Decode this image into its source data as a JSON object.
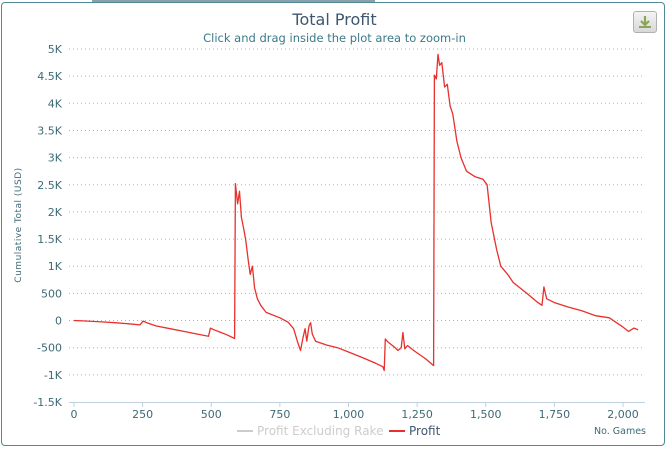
{
  "header": {
    "title": "Total Profit",
    "subtitle": "Click and drag inside the plot area to zoom-in",
    "download_icon": "download-icon"
  },
  "chart_data": {
    "type": "line",
    "title": "Total Profit",
    "subtitle": "Click and drag inside the plot area to zoom-in",
    "xlabel": "No. Games",
    "ylabel": "Cumulative Total (USD)",
    "xlim": [
      -20,
      2080
    ],
    "ylim": [
      -1500,
      5000
    ],
    "xticks": [
      0,
      250,
      500,
      750,
      1000,
      1250,
      1500,
      1750,
      2000
    ],
    "xtick_labels": [
      "0",
      "250",
      "500",
      "750",
      "1,000",
      "1,250",
      "1,500",
      "1,750",
      "2,000"
    ],
    "yticks": [
      -1500,
      -1000,
      -500,
      0,
      500,
      1000,
      1500,
      2000,
      2500,
      3000,
      3500,
      4000,
      4500,
      5000
    ],
    "ytick_labels": [
      "-1.5K",
      "-1K",
      "-500",
      "0",
      "500",
      "1K",
      "1.5K",
      "2K",
      "2.5K",
      "3K",
      "3.5K",
      "4K",
      "4.5K",
      "5K"
    ],
    "grid": true,
    "legend_position": "bottom-center",
    "series": [
      {
        "name": "Profit Excluding Rake",
        "color": "#cccccc",
        "visible": false,
        "points": []
      },
      {
        "name": "Profit",
        "color": "#e8302c",
        "visible": true,
        "points": [
          [
            0,
            0
          ],
          [
            50,
            -10
          ],
          [
            100,
            -25
          ],
          [
            150,
            -40
          ],
          [
            200,
            -60
          ],
          [
            240,
            -80
          ],
          [
            252,
            -10
          ],
          [
            265,
            -40
          ],
          [
            300,
            -100
          ],
          [
            350,
            -150
          ],
          [
            400,
            -200
          ],
          [
            450,
            -250
          ],
          [
            490,
            -290
          ],
          [
            497,
            -140
          ],
          [
            510,
            -170
          ],
          [
            530,
            -210
          ],
          [
            560,
            -270
          ],
          [
            585,
            -330
          ],
          [
            588,
            2520
          ],
          [
            596,
            2150
          ],
          [
            603,
            2380
          ],
          [
            610,
            1900
          ],
          [
            618,
            1700
          ],
          [
            625,
            1500
          ],
          [
            635,
            1100
          ],
          [
            642,
            850
          ],
          [
            650,
            1000
          ],
          [
            658,
            600
          ],
          [
            668,
            400
          ],
          [
            680,
            280
          ],
          [
            700,
            150
          ],
          [
            750,
            50
          ],
          [
            780,
            -30
          ],
          [
            800,
            -150
          ],
          [
            815,
            -400
          ],
          [
            825,
            -550
          ],
          [
            835,
            -300
          ],
          [
            842,
            -150
          ],
          [
            848,
            -380
          ],
          [
            856,
            -100
          ],
          [
            862,
            -40
          ],
          [
            868,
            -250
          ],
          [
            880,
            -380
          ],
          [
            920,
            -450
          ],
          [
            960,
            -500
          ],
          [
            1000,
            -580
          ],
          [
            1050,
            -680
          ],
          [
            1100,
            -790
          ],
          [
            1125,
            -850
          ],
          [
            1130,
            -920
          ],
          [
            1134,
            -340
          ],
          [
            1145,
            -400
          ],
          [
            1165,
            -480
          ],
          [
            1180,
            -550
          ],
          [
            1192,
            -500
          ],
          [
            1198,
            -220
          ],
          [
            1205,
            -520
          ],
          [
            1215,
            -460
          ],
          [
            1240,
            -560
          ],
          [
            1280,
            -700
          ],
          [
            1310,
            -830
          ],
          [
            1313,
            4520
          ],
          [
            1320,
            4450
          ],
          [
            1326,
            4900
          ],
          [
            1332,
            4700
          ],
          [
            1340,
            4750
          ],
          [
            1350,
            4300
          ],
          [
            1360,
            4350
          ],
          [
            1370,
            3950
          ],
          [
            1380,
            3800
          ],
          [
            1395,
            3300
          ],
          [
            1410,
            3000
          ],
          [
            1430,
            2750
          ],
          [
            1460,
            2650
          ],
          [
            1490,
            2600
          ],
          [
            1505,
            2500
          ],
          [
            1520,
            1800
          ],
          [
            1540,
            1300
          ],
          [
            1555,
            1000
          ],
          [
            1580,
            850
          ],
          [
            1600,
            700
          ],
          [
            1650,
            500
          ],
          [
            1690,
            330
          ],
          [
            1705,
            280
          ],
          [
            1712,
            620
          ],
          [
            1722,
            400
          ],
          [
            1750,
            330
          ],
          [
            1800,
            250
          ],
          [
            1850,
            180
          ],
          [
            1900,
            90
          ],
          [
            1950,
            50
          ],
          [
            2000,
            -120
          ],
          [
            2020,
            -200
          ],
          [
            2040,
            -140
          ],
          [
            2055,
            -170
          ]
        ]
      }
    ]
  }
}
